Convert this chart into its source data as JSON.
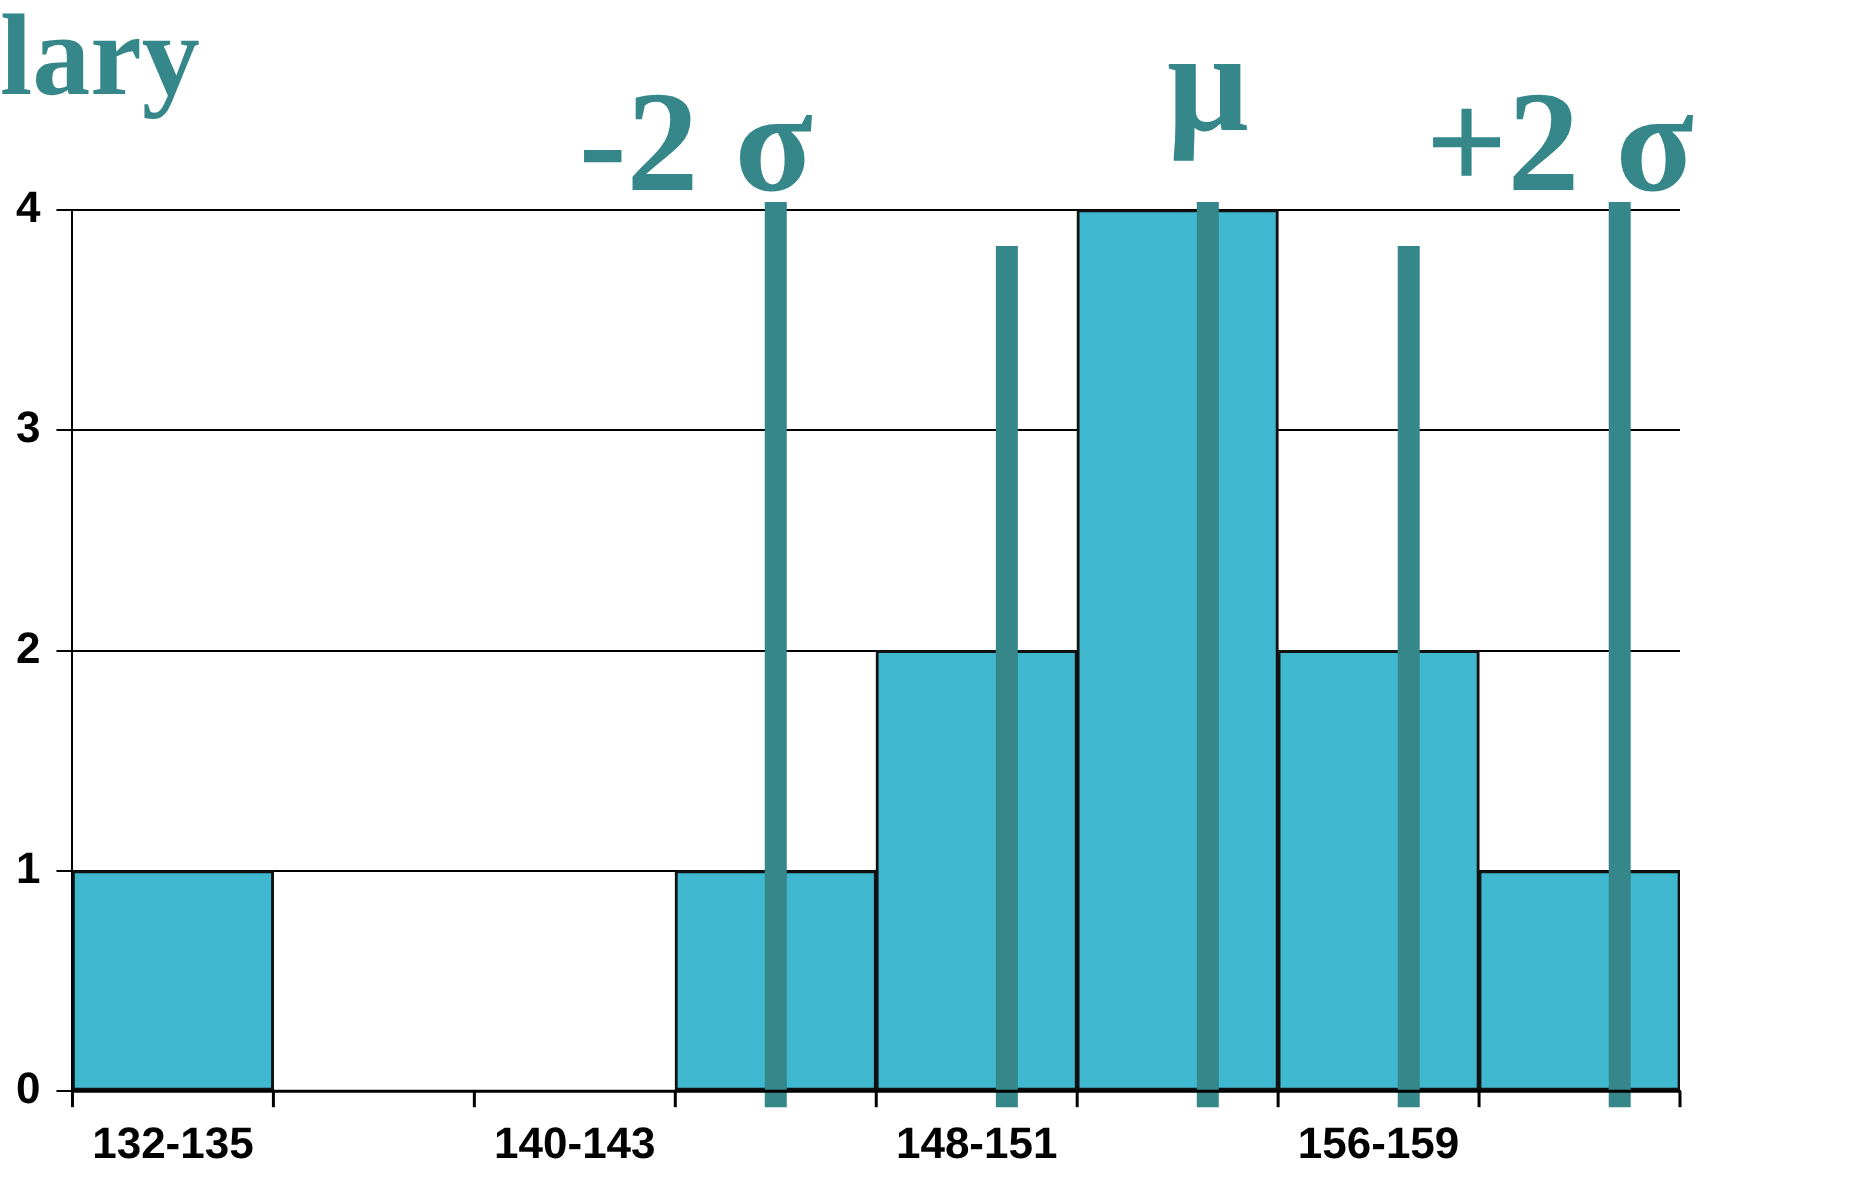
{
  "chart_data": {
    "type": "bar",
    "title": "lary",
    "categories": [
      "132-135",
      null,
      "140-143",
      null,
      "148-151",
      null,
      "156-159",
      null
    ],
    "values": [
      1,
      0,
      0,
      1,
      2,
      4,
      2,
      1
    ],
    "color": "#40b8d0",
    "ylim": [
      0,
      4
    ],
    "yticks": [
      0,
      1,
      2,
      3,
      4
    ],
    "grid": "y",
    "legend": false,
    "annotations": [
      "-2 σ",
      "μ",
      "+2 σ"
    ]
  }
}
